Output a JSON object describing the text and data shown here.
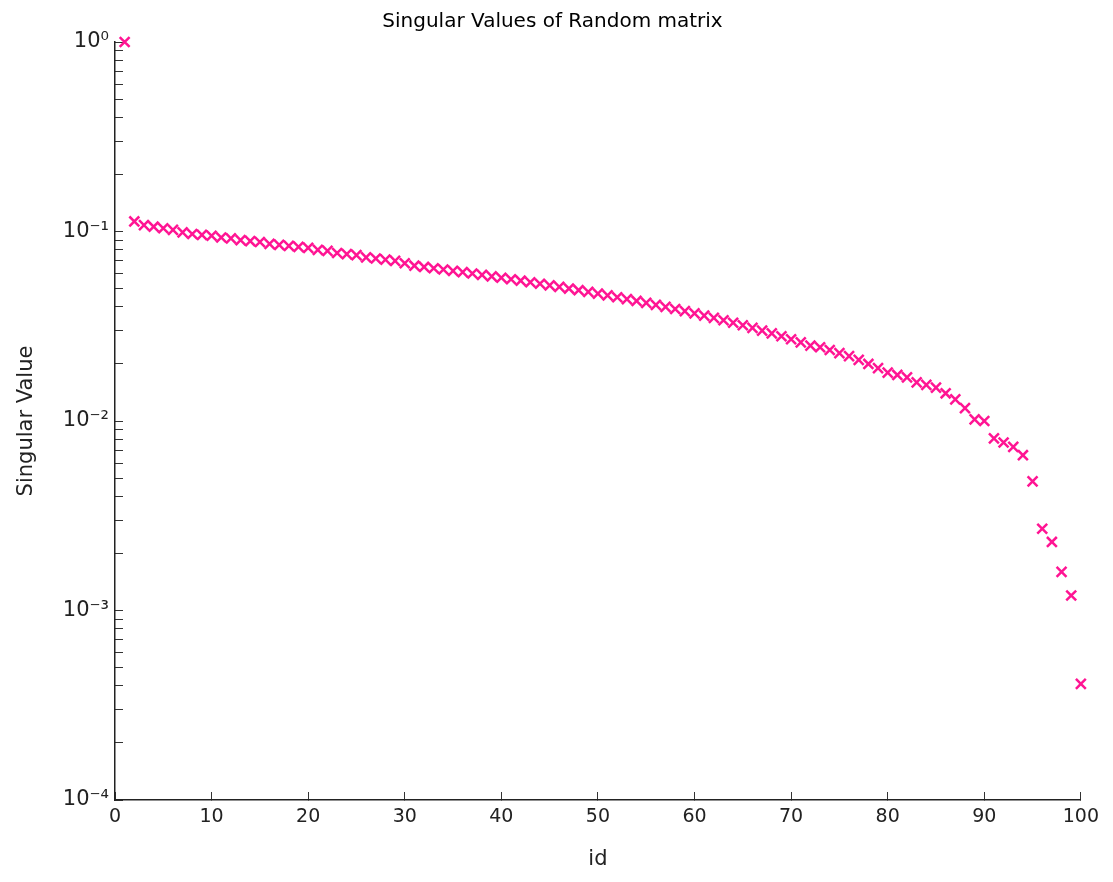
{
  "chart_data": {
    "type": "scatter",
    "title": "Singular Values of Random matrix",
    "xlabel": "id",
    "ylabel": "Singular Value",
    "x": [
      1,
      2,
      3,
      4,
      5,
      6,
      7,
      8,
      9,
      10,
      11,
      12,
      13,
      14,
      15,
      16,
      17,
      18,
      19,
      20,
      21,
      22,
      23,
      24,
      25,
      26,
      27,
      28,
      29,
      30,
      31,
      32,
      33,
      34,
      35,
      36,
      37,
      38,
      39,
      40,
      41,
      42,
      43,
      44,
      45,
      46,
      47,
      48,
      49,
      50,
      51,
      52,
      53,
      54,
      55,
      56,
      57,
      58,
      59,
      60,
      61,
      62,
      63,
      64,
      65,
      66,
      67,
      68,
      69,
      70,
      71,
      72,
      73,
      74,
      75,
      76,
      77,
      78,
      79,
      80,
      81,
      82,
      83,
      84,
      85,
      86,
      87,
      88,
      89,
      90,
      91,
      92,
      93,
      94,
      95,
      96,
      97,
      98,
      99,
      100
    ],
    "series": [
      {
        "color": "#ff1493",
        "values": [
          1.0,
          0.113,
          0.108,
          0.106,
          0.104,
          0.102,
          0.099,
          0.097,
          0.096,
          0.095,
          0.093,
          0.092,
          0.09,
          0.089,
          0.088,
          0.086,
          0.085,
          0.084,
          0.083,
          0.082,
          0.08,
          0.079,
          0.077,
          0.076,
          0.075,
          0.073,
          0.072,
          0.071,
          0.07,
          0.068,
          0.066,
          0.065,
          0.064,
          0.063,
          0.062,
          0.061,
          0.06,
          0.059,
          0.058,
          0.057,
          0.056,
          0.055,
          0.054,
          0.053,
          0.052,
          0.051,
          0.05,
          0.049,
          0.048,
          0.047,
          0.046,
          0.045,
          0.044,
          0.043,
          0.042,
          0.041,
          0.04,
          0.039,
          0.038,
          0.037,
          0.036,
          0.035,
          0.034,
          0.033,
          0.032,
          0.031,
          0.03,
          0.029,
          0.028,
          0.027,
          0.026,
          0.025,
          0.0245,
          0.0237,
          0.0228,
          0.022,
          0.021,
          0.02,
          0.019,
          0.018,
          0.0175,
          0.017,
          0.016,
          0.0155,
          0.015,
          0.014,
          0.013,
          0.0117,
          0.0102,
          0.01,
          0.0081,
          0.0077,
          0.0073,
          0.0066,
          0.0048,
          0.0027,
          0.0023,
          0.0016,
          0.0012,
          0.00041
        ]
      }
    ],
    "xlim": [
      0,
      100
    ],
    "xticks": [
      0,
      10,
      20,
      30,
      40,
      50,
      60,
      70,
      80,
      90,
      100
    ],
    "log": true,
    "ylim": [
      0.0001,
      1
    ],
    "yticks": [
      {
        "value": 0.0001,
        "label": "10⁻⁴"
      },
      {
        "value": 0.0002,
        "label": null
      },
      {
        "value": 0.0003,
        "label": null
      },
      {
        "value": 0.0004,
        "label": null
      },
      {
        "value": 0.0005,
        "label": null
      },
      {
        "value": 0.0006,
        "label": null
      },
      {
        "value": 0.0007,
        "label": null
      },
      {
        "value": 0.0008,
        "label": null
      },
      {
        "value": 0.0009,
        "label": null
      },
      {
        "value": 0.001,
        "label": "10⁻³"
      },
      {
        "value": 0.002,
        "label": null
      },
      {
        "value": 0.003,
        "label": null
      },
      {
        "value": 0.004,
        "label": null
      },
      {
        "value": 0.005,
        "label": null
      },
      {
        "value": 0.006,
        "label": null
      },
      {
        "value": 0.007,
        "label": null
      },
      {
        "value": 0.008,
        "label": null
      },
      {
        "value": 0.009,
        "label": null
      },
      {
        "value": 0.01,
        "label": "10⁻²"
      },
      {
        "value": 0.02,
        "label": null
      },
      {
        "value": 0.03,
        "label": null
      },
      {
        "value": 0.04,
        "label": null
      },
      {
        "value": 0.05,
        "label": null
      },
      {
        "value": 0.06,
        "label": null
      },
      {
        "value": 0.07,
        "label": null
      },
      {
        "value": 0.08,
        "label": null
      },
      {
        "value": 0.09,
        "label": null
      },
      {
        "value": 0.1,
        "label": "10⁻¹"
      },
      {
        "value": 0.2,
        "label": null
      },
      {
        "value": 0.3,
        "label": null
      },
      {
        "value": 0.4,
        "label": null
      },
      {
        "value": 0.5,
        "label": null
      },
      {
        "value": 0.6,
        "label": null
      },
      {
        "value": 0.7,
        "label": null
      },
      {
        "value": 0.8,
        "label": null
      },
      {
        "value": 0.9,
        "label": null
      },
      {
        "value": 1,
        "label": "10⁰"
      }
    ],
    "marker": "cross",
    "grid": false,
    "legend": false
  }
}
